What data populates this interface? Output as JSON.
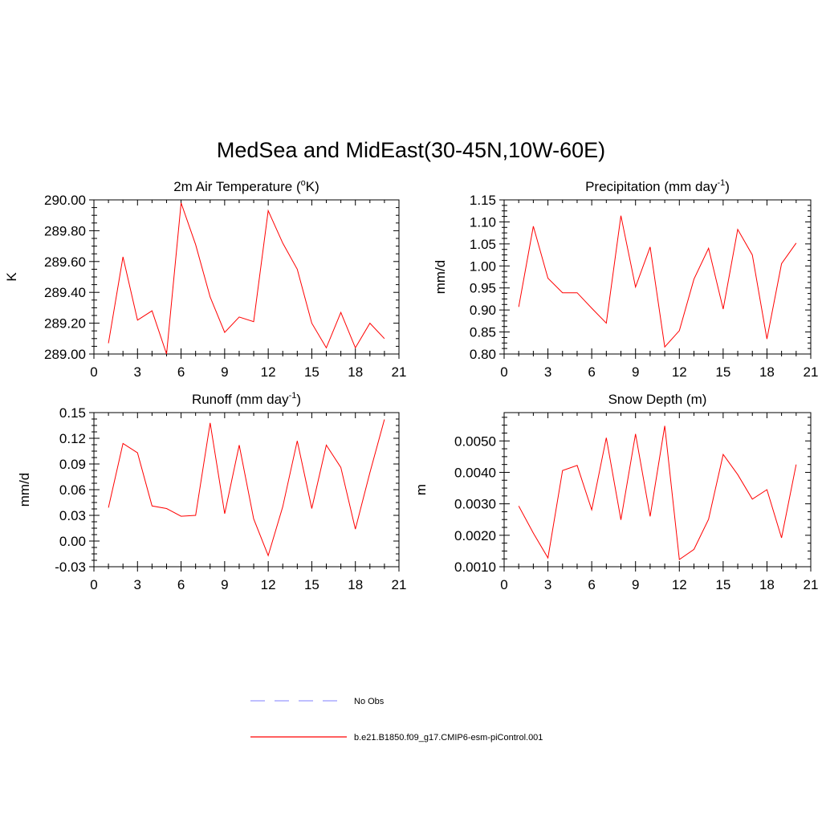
{
  "title": "MedSea and MidEast(30-45N,10W-60E)",
  "colors": {
    "model": "#ff0000",
    "obs": "#9999ff",
    "axis": "#000000"
  },
  "legend": [
    {
      "label": "No Obs",
      "style": "dashed",
      "color": "#9999ff"
    },
    {
      "label": "b.e21.B1850.f09_g17.CMIP6-esm-piControl.001",
      "style": "solid",
      "color": "#ff0000"
    }
  ],
  "chart_data": [
    {
      "type": "line",
      "title_main": "2m Air Temperature (",
      "title_sup_pre": "o",
      "title_after": "K)",
      "title_sup_post": "",
      "title_tail": "",
      "ylabel": "K",
      "xlabel": "",
      "xlim": [
        0,
        21
      ],
      "xticks": [
        0,
        3,
        6,
        9,
        12,
        15,
        18,
        21
      ],
      "ylim": [
        289.0,
        290.0
      ],
      "yticks": [
        289.0,
        289.2,
        289.4,
        289.6,
        289.8,
        290.0
      ],
      "ytick_labels": [
        "289.00",
        "289.20",
        "289.40",
        "289.60",
        "289.80",
        "290.00"
      ],
      "series": [
        {
          "name": "b.e21.B1850.f09_g17.CMIP6-esm-piControl.001",
          "x": [
            1,
            2,
            3,
            4,
            5,
            6,
            7,
            8,
            9,
            10,
            11,
            12,
            13,
            14,
            15,
            16,
            17,
            18,
            19,
            20
          ],
          "values": [
            289.07,
            289.63,
            289.22,
            289.28,
            289.0,
            289.98,
            289.71,
            289.37,
            289.14,
            289.24,
            289.21,
            289.93,
            289.72,
            289.55,
            289.2,
            289.04,
            289.27,
            289.04,
            289.2,
            289.1
          ]
        }
      ]
    },
    {
      "type": "line",
      "title_main": "Precipitation (mm day",
      "title_sup_pre": "",
      "title_after": "",
      "title_sup_post": "-1",
      "title_tail": ")",
      "ylabel": "mm/d",
      "xlabel": "",
      "xlim": [
        0,
        21
      ],
      "xticks": [
        0,
        3,
        6,
        9,
        12,
        15,
        18,
        21
      ],
      "ylim": [
        0.8,
        1.15
      ],
      "yticks": [
        0.8,
        0.85,
        0.9,
        0.95,
        1.0,
        1.05,
        1.1,
        1.15
      ],
      "ytick_labels": [
        "0.80",
        "0.85",
        "0.90",
        "0.95",
        "1.00",
        "1.05",
        "1.10",
        "1.15"
      ],
      "series": [
        {
          "name": "b.e21.B1850.f09_g17.CMIP6-esm-piControl.001",
          "x": [
            1,
            2,
            3,
            4,
            5,
            6,
            7,
            8,
            9,
            10,
            11,
            12,
            13,
            14,
            15,
            16,
            17,
            18,
            19,
            20
          ],
          "values": [
            0.907,
            1.09,
            0.972,
            0.939,
            0.939,
            0.904,
            0.87,
            1.114,
            0.952,
            1.043,
            0.816,
            0.853,
            0.97,
            1.04,
            0.902,
            1.083,
            1.025,
            0.834,
            1.005,
            1.052
          ]
        }
      ]
    },
    {
      "type": "line",
      "title_main": "Runoff (mm day",
      "title_sup_pre": "",
      "title_after": "",
      "title_sup_post": "-1",
      "title_tail": ")",
      "ylabel": "mm/d",
      "xlabel": "",
      "xlim": [
        0,
        21
      ],
      "xticks": [
        0,
        3,
        6,
        9,
        12,
        15,
        18,
        21
      ],
      "ylim": [
        -0.03,
        0.15
      ],
      "yticks": [
        -0.03,
        0.0,
        0.03,
        0.06,
        0.09,
        0.12,
        0.15
      ],
      "ytick_labels": [
        "-0.03",
        "0.00",
        "0.03",
        "0.06",
        "0.09",
        "0.12",
        "0.15"
      ],
      "series": [
        {
          "name": "b.e21.B1850.f09_g17.CMIP6-esm-piControl.001",
          "x": [
            1,
            2,
            3,
            4,
            5,
            6,
            7,
            8,
            9,
            10,
            11,
            12,
            13,
            14,
            15,
            16,
            17,
            18,
            19,
            20
          ],
          "values": [
            0.039,
            0.114,
            0.103,
            0.041,
            0.038,
            0.029,
            0.03,
            0.138,
            0.032,
            0.112,
            0.026,
            -0.017,
            0.04,
            0.117,
            0.038,
            0.112,
            0.086,
            0.014,
            0.08,
            0.142
          ]
        }
      ]
    },
    {
      "type": "line",
      "title_main": "Snow Depth (m)",
      "title_sup_pre": "",
      "title_after": "",
      "title_sup_post": "",
      "title_tail": "",
      "ylabel": "m",
      "xlabel": "",
      "xlim": [
        0,
        21
      ],
      "xticks": [
        0,
        3,
        6,
        9,
        12,
        15,
        18,
        21
      ],
      "ylim": [
        0.001,
        0.0059
      ],
      "yticks": [
        0.001,
        0.002,
        0.003,
        0.004,
        0.005
      ],
      "ytick_labels": [
        "0.0010",
        "0.0020",
        "0.0030",
        "0.0040",
        "0.0050"
      ],
      "series": [
        {
          "name": "b.e21.B1850.f09_g17.CMIP6-esm-piControl.001",
          "x": [
            1,
            2,
            3,
            4,
            5,
            6,
            7,
            8,
            9,
            10,
            11,
            12,
            13,
            14,
            15,
            16,
            17,
            18,
            19,
            20
          ],
          "values": [
            0.00293,
            0.00207,
            0.00128,
            0.00406,
            0.00422,
            0.00281,
            0.0051,
            0.00249,
            0.00522,
            0.0026,
            0.00548,
            0.00123,
            0.00155,
            0.00251,
            0.00457,
            0.00393,
            0.00315,
            0.00345,
            0.00192,
            0.00425
          ]
        }
      ]
    }
  ]
}
